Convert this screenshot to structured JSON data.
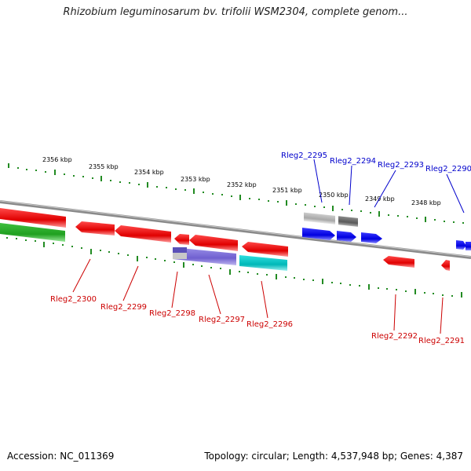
{
  "title": "Rhizobium leguminosarum bv. trifolii WSM2304, complete genom...",
  "footer": {
    "accession": "Accession: NC_011369",
    "topology": "Topology: circular; Length: 4,537,948 bp; Genes: 4,387"
  },
  "scale_labels": [
    "2356 kbp",
    "2355 kbp",
    "2354 kbp",
    "2353 kbp",
    "2352 kbp",
    "2351 kbp",
    "2350 kbp",
    "2349 kbp",
    "2348 kbp"
  ],
  "colors": {
    "forward_label": "#0000cc",
    "reverse_label": "#cc0000",
    "backbone": "#888888",
    "tick": "#228b22"
  },
  "genes_forward": [
    {
      "name": "Rleg2_2295",
      "color": "#0000ee"
    },
    {
      "name": "Rleg2_2294",
      "color": "#0000ee"
    },
    {
      "name": "Rleg2_2293",
      "color": "#0000ee"
    },
    {
      "name": "Rleg2_2290",
      "color": "#0000ee"
    }
  ],
  "genes_reverse": [
    {
      "name": "Rleg2_2300",
      "color": "#ee0000"
    },
    {
      "name": "Rleg2_2299",
      "color": "#ee0000"
    },
    {
      "name": "Rleg2_2298",
      "color": "#ee0000"
    },
    {
      "name": "Rleg2_2297",
      "color": "#ee0000"
    },
    {
      "name": "Rleg2_2296",
      "color": "#ee0000"
    },
    {
      "name": "Rleg2_2292",
      "color": "#ee0000"
    },
    {
      "name": "Rleg2_2291",
      "color": "#ee0000"
    }
  ]
}
